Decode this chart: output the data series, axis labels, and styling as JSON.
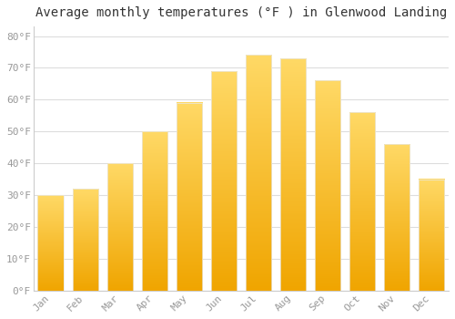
{
  "title": "Average monthly temperatures (°F ) in Glenwood Landing",
  "months": [
    "Jan",
    "Feb",
    "Mar",
    "Apr",
    "May",
    "Jun",
    "Jul",
    "Aug",
    "Sep",
    "Oct",
    "Nov",
    "Dec"
  ],
  "values": [
    30,
    32,
    40,
    50,
    59,
    69,
    74,
    73,
    66,
    56,
    46,
    35
  ],
  "bar_color_top": "#FFD966",
  "bar_color_bottom": "#F0A500",
  "bar_edge_color": "#E8E8E8",
  "background_color": "#ffffff",
  "plot_bg_color": "#ffffff",
  "grid_color": "#dddddd",
  "ytick_labels": [
    "0°F",
    "10°F",
    "20°F",
    "30°F",
    "40°F",
    "50°F",
    "60°F",
    "70°F",
    "80°F"
  ],
  "ytick_values": [
    0,
    10,
    20,
    30,
    40,
    50,
    60,
    70,
    80
  ],
  "ylim": [
    0,
    83
  ],
  "title_fontsize": 10,
  "tick_fontsize": 8,
  "tick_color": "#999999",
  "title_color": "#333333"
}
